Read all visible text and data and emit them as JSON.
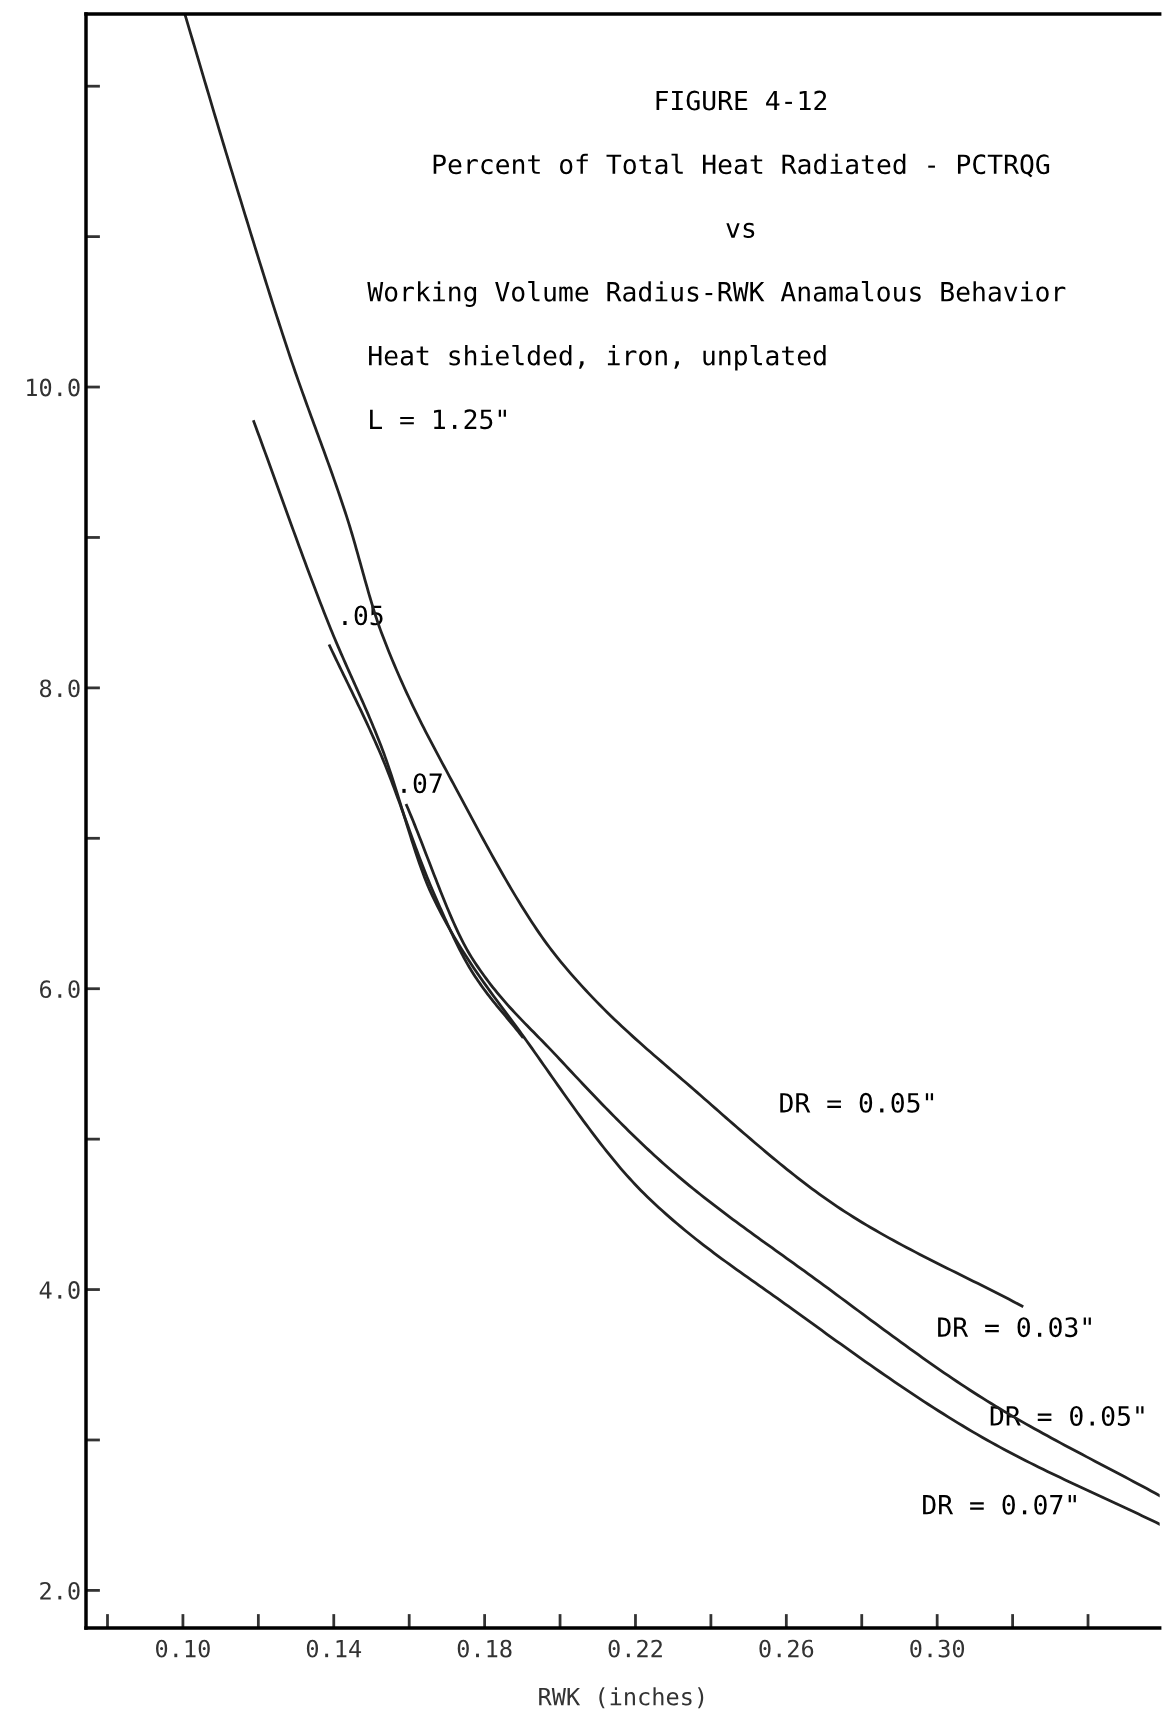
{
  "chart_data": {
    "type": "line",
    "title": "FIGURE 4-12",
    "xlabel": "RWK (inches)",
    "annotations": [
      "Percent of Total Heat Radiated - PCTRQG",
      "vs",
      "Working Volume Radius-RWK Anamalous Behavior",
      "Heat shielded, iron, unplated",
      "L = 1.25\"",
      ".05",
      ".07",
      "DR = 0.05\"",
      "DR = 0.03\"",
      "DR = 0.05\"",
      "DR = 0.07\""
    ],
    "series": [
      {
        "color": "#222222",
        "x": [
          0.1005,
          0.113,
          0.1283,
          0.1434,
          0.1526,
          0.1722,
          0.1992,
          0.2373,
          0.2754,
          0.3225
        ],
        "values": [
          12.48,
          11.43,
          10.21,
          9.14,
          8.37,
          7.34,
          6.21,
          5.29,
          4.52,
          3.89
        ]
      },
      {
        "color": "#222222",
        "x": [
          0.1188,
          0.1389,
          0.1526,
          0.1661,
          0.1918,
          0.2222,
          0.2616,
          0.3132,
          0.359
        ],
        "values": [
          9.77,
          8.41,
          7.61,
          6.62,
          5.63,
          4.64,
          3.87,
          3.0,
          2.44
        ]
      },
      {
        "color": "#222222",
        "x": [
          0.1389,
          0.1526,
          0.1661,
          0.1765,
          0.19
        ],
        "values": [
          8.28,
          7.55,
          6.66,
          6.12,
          5.68
        ]
      },
      {
        "color": "#222222",
        "x": [
          0.1593,
          0.1765,
          0.1992,
          0.2296,
          0.2677,
          0.3132,
          0.359
        ],
        "values": [
          7.22,
          6.21,
          5.55,
          4.79,
          4.07,
          3.26,
          2.63
        ]
      }
    ],
    "xlim": [
      0.0743,
      0.359
    ],
    "ylim": [
      1.75,
      12.48
    ],
    "xticks": [
      {
        "value": 0.08,
        "label": null
      },
      {
        "value": 0.1,
        "label": "0.10"
      },
      {
        "value": 0.12,
        "label": null
      },
      0.14,
      {
        "value": 0.16,
        "label": null
      },
      0.18,
      {
        "value": 0.2,
        "label": null
      },
      0.22,
      {
        "value": 0.24,
        "label": null
      },
      0.26,
      {
        "value": 0.28,
        "label": null
      },
      {
        "value": 0.3,
        "label": "0.30"
      },
      {
        "value": 0.32,
        "label": null
      },
      {
        "value": 0.34,
        "label": null
      }
    ],
    "yticks": [
      {
        "value": 2,
        "label": "2.0"
      },
      {
        "value": 3,
        "label": null
      },
      {
        "value": 4,
        "label": "4.0"
      },
      {
        "value": 5,
        "label": null
      },
      {
        "value": 6,
        "label": "6.0"
      },
      {
        "value": 7,
        "label": null
      },
      {
        "value": 8,
        "label": "8.0"
      },
      {
        "value": 9,
        "label": null
      },
      {
        "value": 10,
        "label": "10.0"
      },
      {
        "value": 11,
        "label": null
      },
      {
        "value": 12,
        "label": null
      }
    ],
    "grid": false,
    "marker": "none",
    "line_style": "solid"
  }
}
